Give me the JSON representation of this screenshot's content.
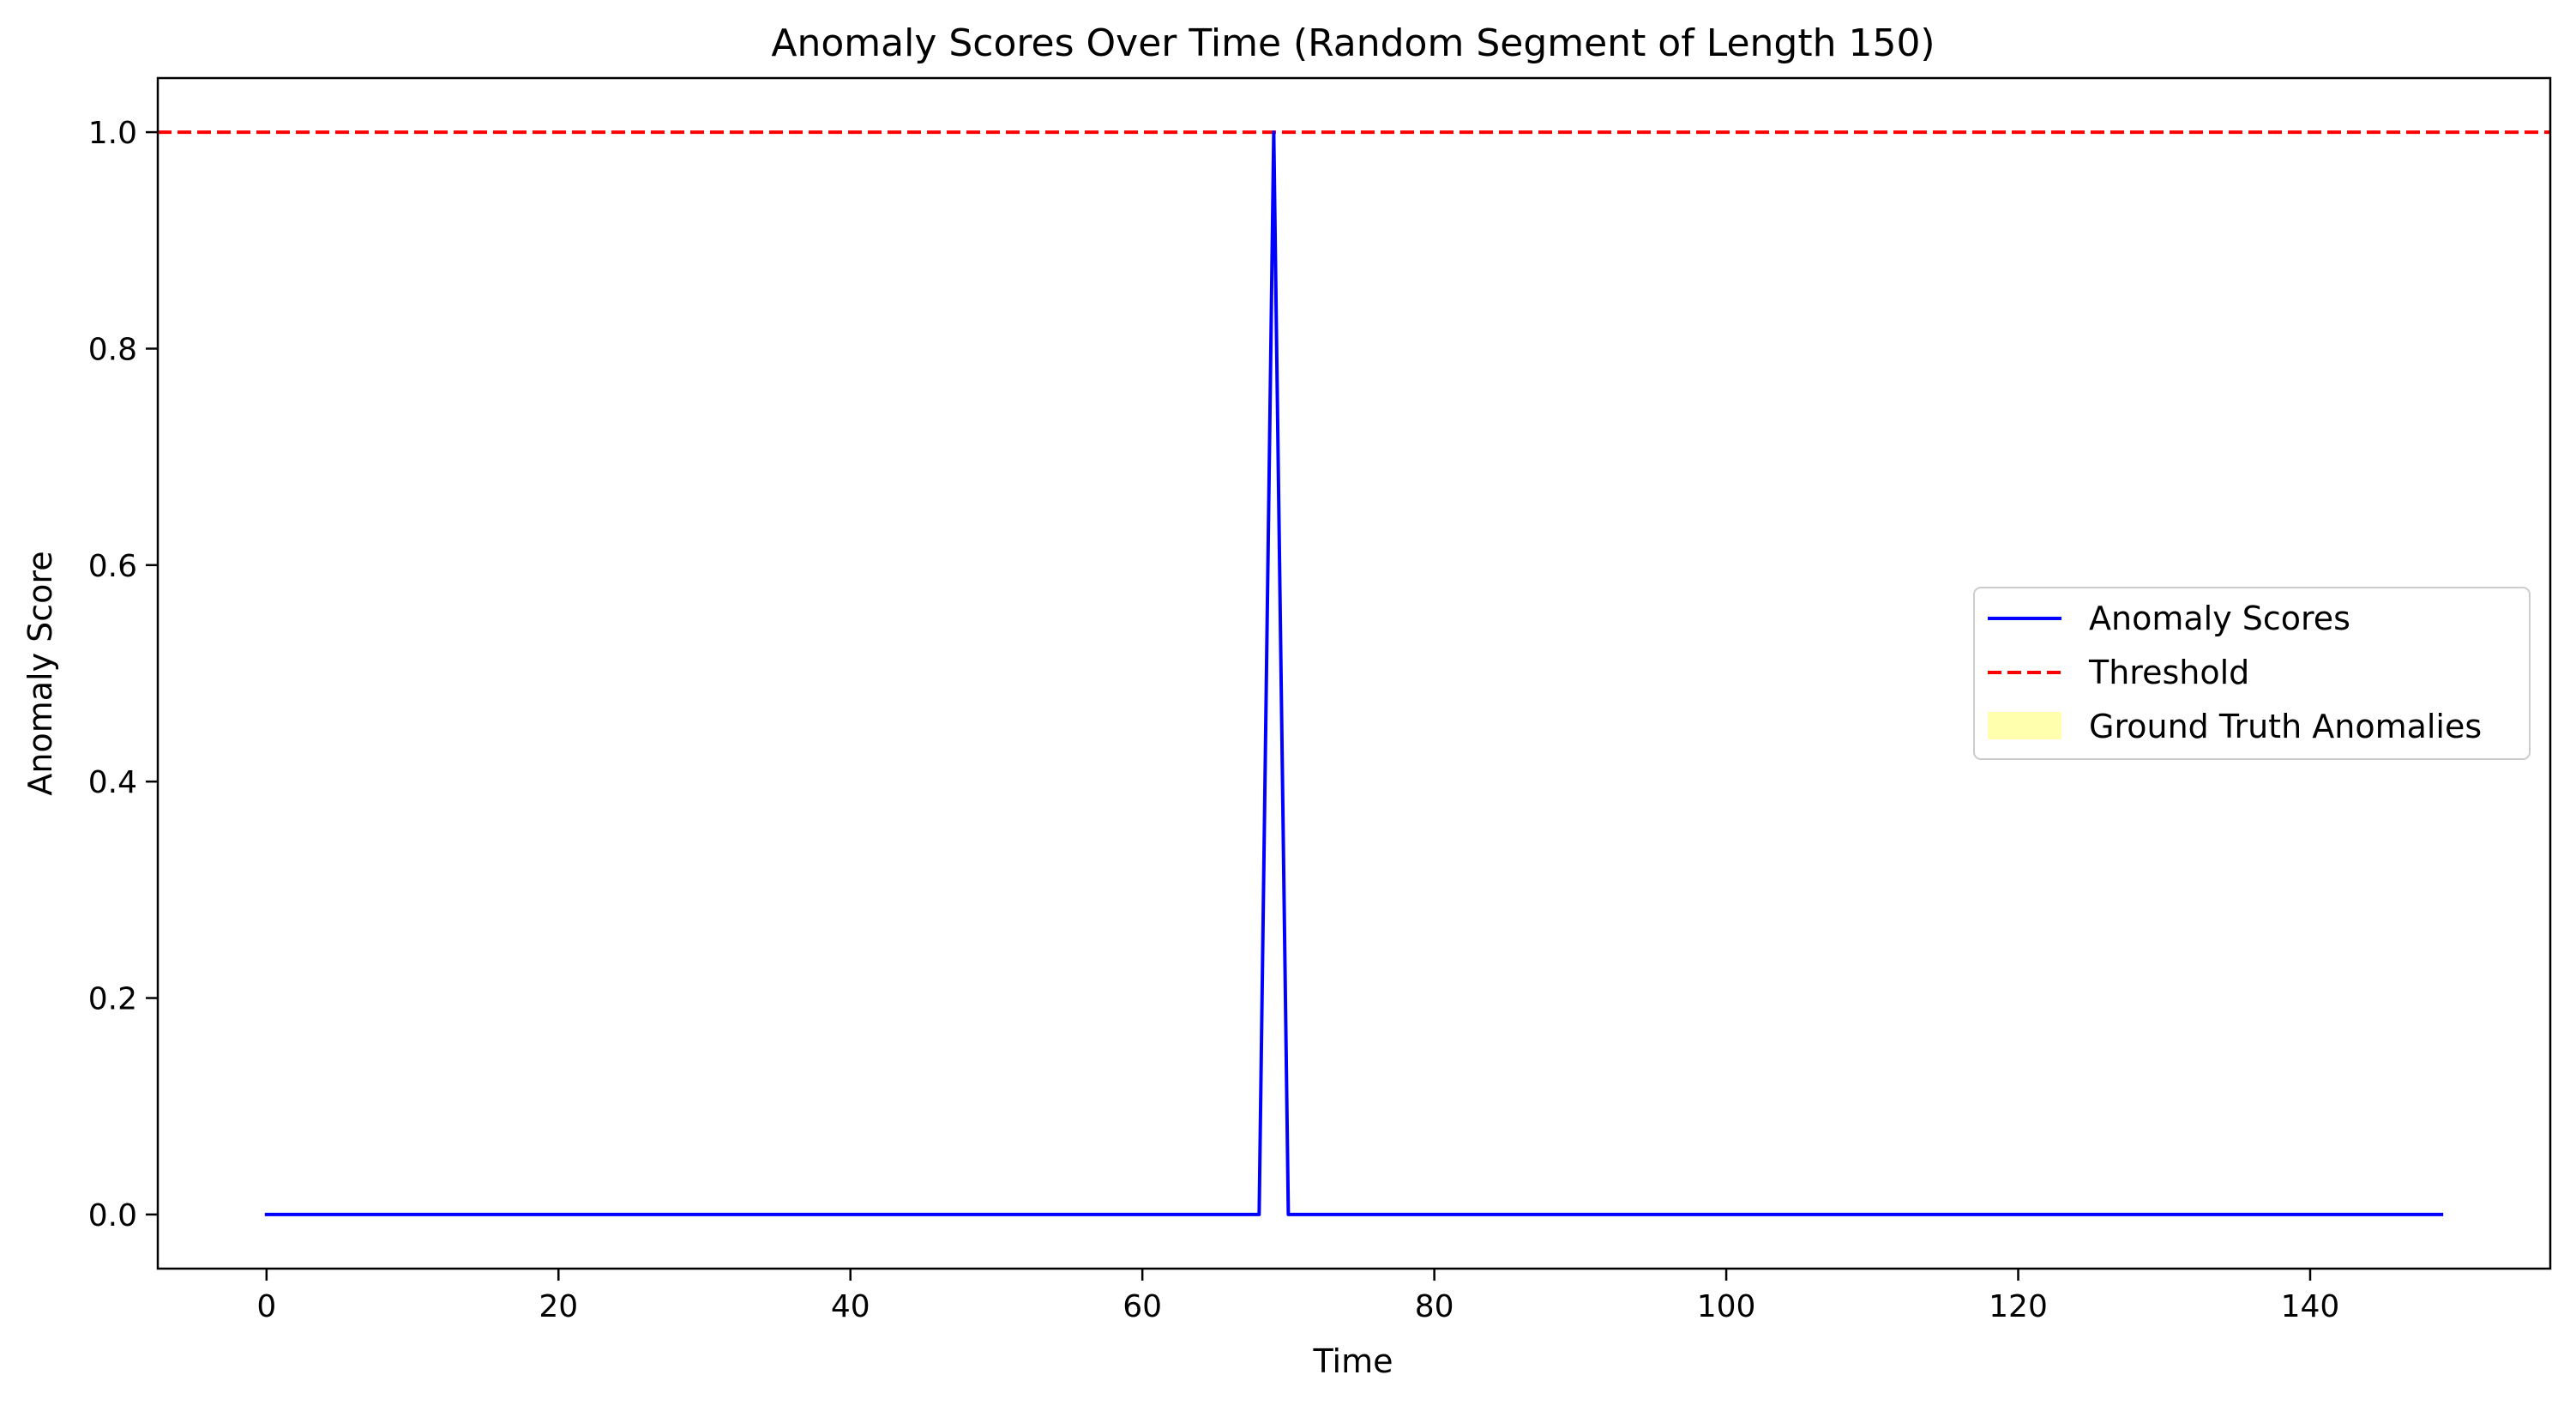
{
  "chart_data": {
    "type": "line",
    "title": "Anomaly Scores Over Time (Random Segment of Length 150)",
    "xlabel": "Time",
    "ylabel": "Anomaly Score",
    "xlim": [
      -7.45,
      156.45
    ],
    "ylim": [
      -0.05,
      1.05
    ],
    "xticks": [
      0,
      20,
      40,
      60,
      80,
      100,
      120,
      140
    ],
    "xtick_labels": [
      "0",
      "20",
      "40",
      "60",
      "80",
      "100",
      "120",
      "140"
    ],
    "yticks": [
      0.0,
      0.2,
      0.4,
      0.6,
      0.8,
      1.0
    ],
    "ytick_labels": [
      "0.0",
      "0.2",
      "0.4",
      "0.6",
      "0.8",
      "1.0"
    ],
    "grid": false,
    "legend_position": "center-right",
    "series": [
      {
        "name": "Anomaly Scores",
        "color": "#0000ff",
        "style": "solid",
        "x": [
          0,
          68,
          69,
          70,
          149
        ],
        "y": [
          0.0,
          0.0,
          1.0,
          0.0,
          0.0
        ]
      }
    ],
    "threshold": {
      "name": "Threshold",
      "value": 1.0,
      "color": "#ff0000",
      "style": "dashed"
    },
    "ground_truth": {
      "name": "Ground Truth Anomalies",
      "color": "#ffff99",
      "regions": []
    }
  }
}
